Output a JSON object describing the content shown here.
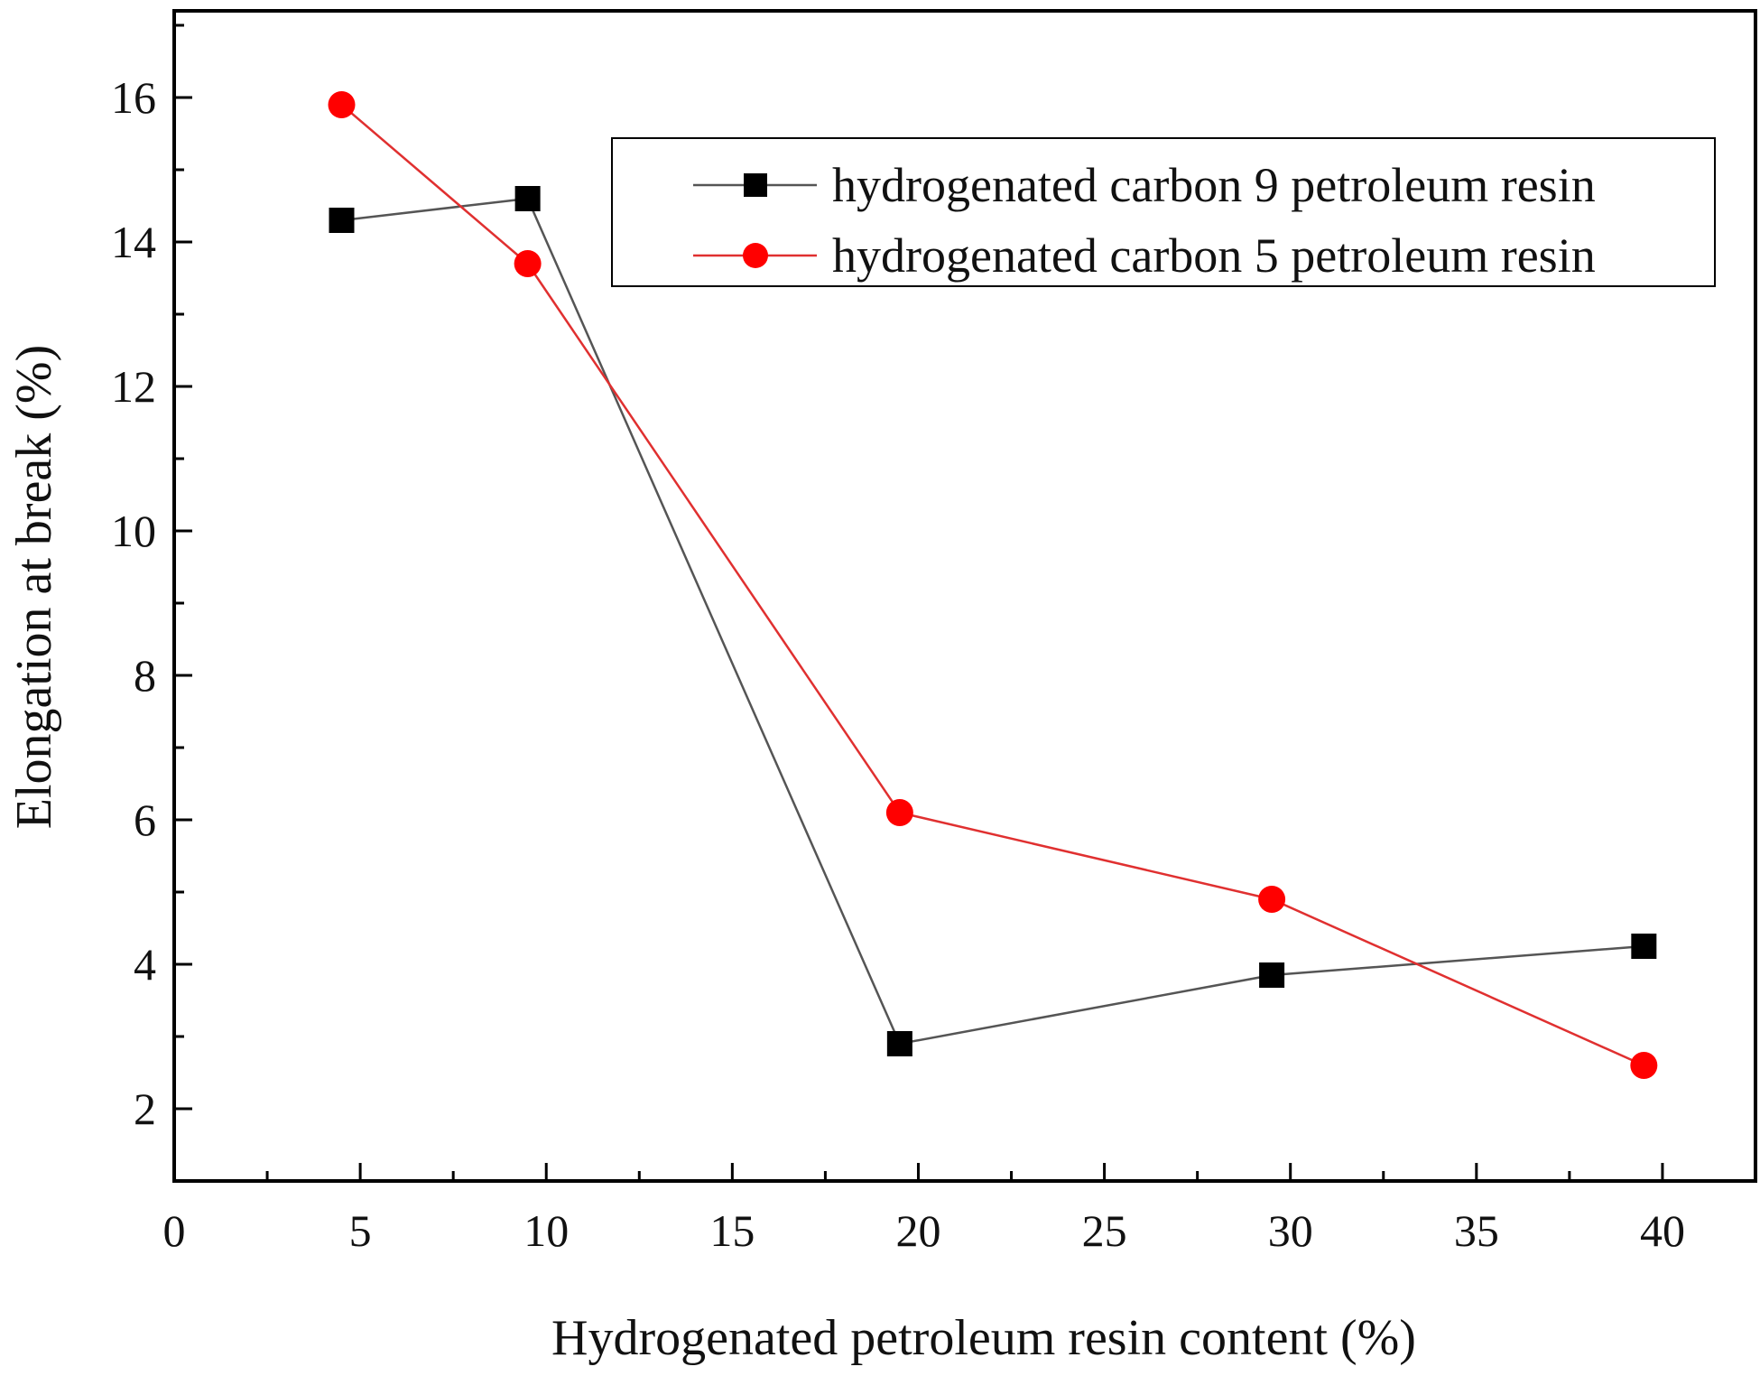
{
  "chart_data": {
    "type": "line",
    "xlabel": "Hydrogenated petroleum resin content (%)",
    "ylabel": "Elongation at break (%)",
    "xlim": [
      0,
      42.5
    ],
    "ylim": [
      1,
      17.2
    ],
    "x_ticks": [
      0,
      5,
      10,
      15,
      20,
      25,
      30,
      35,
      40
    ],
    "x_tick_labels": [
      "0",
      "5",
      "10",
      "15",
      "20",
      "25",
      "30",
      "35",
      "40"
    ],
    "y_ticks": [
      2,
      4,
      6,
      8,
      10,
      12,
      14,
      16
    ],
    "y_tick_labels": [
      "2",
      "4",
      "6",
      "8",
      "10",
      "12",
      "14",
      "16"
    ],
    "grid": false,
    "legend_position": "top-right",
    "series": [
      {
        "name": "hydrogenated carbon 9 petroleum resin",
        "marker": "square",
        "color": "#000000",
        "line_color": "#555555",
        "x": [
          4.5,
          9.5,
          19.5,
          29.5,
          39.5
        ],
        "y": [
          14.3,
          14.6,
          2.9,
          3.85,
          4.25
        ]
      },
      {
        "name": "hydrogenated carbon 5 petroleum resin",
        "marker": "circle",
        "color": "#ff0000",
        "line_color": "#e03030",
        "x": [
          4.5,
          9.5,
          19.5,
          29.5,
          39.5
        ],
        "y": [
          15.9,
          13.7,
          6.1,
          4.9,
          2.6
        ]
      }
    ]
  }
}
